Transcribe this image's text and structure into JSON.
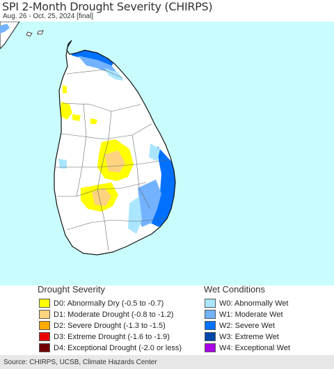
{
  "header": {
    "title": "SPI 2-Month Drought Severity (CHIRPS)",
    "subtitle": "Aug. 26 - Oct. 25, 2024 [final]"
  },
  "map": {
    "ocean_color": "#c9fdfd",
    "land_color": "#ffffff",
    "border_color": "#111111"
  },
  "legend": {
    "drought_title": "Drought Severity",
    "wet_title": "Wet Conditions",
    "drought_items": [
      {
        "label": "D0: Abnormally Dry (-0.5 to -0.7)",
        "color": "#ffff00"
      },
      {
        "label": "D1: Moderate Drought (-0.8 to -1.2)",
        "color": "#fcd37f"
      },
      {
        "label": "D2: Severe Drought (-1.3 to -1.5)",
        "color": "#ffaa00"
      },
      {
        "label": "D3: Extreme Drought (-1.6 to -1.9)",
        "color": "#e60000"
      },
      {
        "label": "D4: Exceptional Drought (-2.0 or less)",
        "color": "#730000"
      }
    ],
    "wet_items": [
      {
        "label": "W0: Abnormally Wet",
        "color": "#aae6ff"
      },
      {
        "label": "W1: Moderate Wet",
        "color": "#73b2ff"
      },
      {
        "label": "W2: Severe Wet",
        "color": "#0070ff"
      },
      {
        "label": "W3: Extreme Wet",
        "color": "#0046aa"
      },
      {
        "label": "W4: Exceptional Wet",
        "color": "#a900e6"
      }
    ]
  },
  "footer": {
    "source": "Source: CHIRPS, UCSB, Climate Hazards Center"
  }
}
